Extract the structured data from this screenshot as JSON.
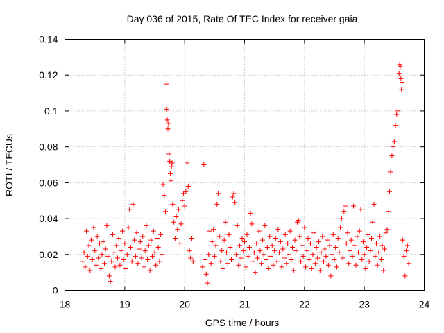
{
  "chart_data": {
    "type": "scatter",
    "title": "Day 036 of 2015, Rate Of TEC Index for receiver gaia",
    "xlabel": "GPS time / hours",
    "ylabel": "ROTI / TECUs",
    "xlim": [
      18,
      24
    ],
    "ylim": [
      0,
      0.14
    ],
    "xticks": [
      18,
      19,
      20,
      21,
      22,
      23,
      24
    ],
    "yticks": [
      0,
      0.02,
      0.04,
      0.06,
      0.08,
      0.1,
      0.12,
      0.14
    ],
    "xtick_labels": [
      "18",
      "19",
      "20",
      "21",
      "22",
      "23",
      "24"
    ],
    "ytick_labels": [
      "0",
      "0.02",
      "0.04",
      "0.06",
      "0.08",
      "0.1",
      "0.12",
      "0.14"
    ],
    "grid": true,
    "marker": "+",
    "color": "#ff0000",
    "series": [
      {
        "name": "ROTI",
        "points": [
          [
            18.3,
            0.016
          ],
          [
            18.32,
            0.021
          ],
          [
            18.34,
            0.013
          ],
          [
            18.36,
            0.033
          ],
          [
            18.38,
            0.019
          ],
          [
            18.4,
            0.025
          ],
          [
            18.42,
            0.011
          ],
          [
            18.44,
            0.028
          ],
          [
            18.46,
            0.017
          ],
          [
            18.48,
            0.035
          ],
          [
            18.5,
            0.022
          ],
          [
            18.52,
            0.014
          ],
          [
            18.54,
            0.03
          ],
          [
            18.56,
            0.018
          ],
          [
            18.58,
            0.026
          ],
          [
            18.6,
            0.012
          ],
          [
            18.62,
            0.02
          ],
          [
            18.64,
            0.027
          ],
          [
            18.66,
            0.015
          ],
          [
            18.68,
            0.023
          ],
          [
            18.7,
            0.036
          ],
          [
            18.72,
            0.019
          ],
          [
            18.74,
            0.008
          ],
          [
            18.76,
            0.005
          ],
          [
            18.78,
            0.016
          ],
          [
            18.8,
            0.031
          ],
          [
            18.82,
            0.021
          ],
          [
            18.84,
            0.013
          ],
          [
            18.86,
            0.025
          ],
          [
            18.88,
            0.018
          ],
          [
            18.9,
            0.029
          ],
          [
            18.92,
            0.014
          ],
          [
            18.94,
            0.022
          ],
          [
            18.96,
            0.033
          ],
          [
            18.98,
            0.017
          ],
          [
            19.0,
            0.026
          ],
          [
            19.02,
            0.012
          ],
          [
            19.04,
            0.02
          ],
          [
            19.06,
            0.035
          ],
          [
            19.08,
            0.045
          ],
          [
            19.1,
            0.024
          ],
          [
            19.12,
            0.016
          ],
          [
            19.14,
            0.048
          ],
          [
            19.16,
            0.028
          ],
          [
            19.18,
            0.019
          ],
          [
            19.2,
            0.032
          ],
          [
            19.22,
            0.015
          ],
          [
            19.24,
            0.023
          ],
          [
            19.26,
            0.027
          ],
          [
            19.28,
            0.018
          ],
          [
            19.3,
            0.03
          ],
          [
            19.32,
            0.013
          ],
          [
            19.34,
            0.022
          ],
          [
            19.36,
            0.036
          ],
          [
            19.38,
            0.017
          ],
          [
            19.4,
            0.025
          ],
          [
            19.42,
            0.011
          ],
          [
            19.44,
            0.028
          ],
          [
            19.46,
            0.019
          ],
          [
            19.48,
            0.033
          ],
          [
            19.5,
            0.021
          ],
          [
            19.52,
            0.014
          ],
          [
            19.54,
            0.029
          ],
          [
            19.56,
            0.024
          ],
          [
            19.58,
            0.016
          ],
          [
            19.6,
            0.031
          ],
          [
            19.62,
            0.02
          ],
          [
            19.64,
            0.059
          ],
          [
            19.66,
            0.053
          ],
          [
            19.68,
            0.044
          ],
          [
            19.69,
            0.115
          ],
          [
            19.7,
            0.101
          ],
          [
            19.71,
            0.095
          ],
          [
            19.72,
            0.09
          ],
          [
            19.73,
            0.093
          ],
          [
            19.74,
            0.076
          ],
          [
            19.75,
            0.072
          ],
          [
            19.76,
            0.065
          ],
          [
            19.77,
            0.061
          ],
          [
            19.78,
            0.069
          ],
          [
            19.79,
            0.071
          ],
          [
            19.8,
            0.048
          ],
          [
            19.82,
            0.038
          ],
          [
            19.84,
            0.029
          ],
          [
            19.86,
            0.041
          ],
          [
            19.88,
            0.034
          ],
          [
            19.9,
            0.045
          ],
          [
            19.92,
            0.026
          ],
          [
            19.94,
            0.037
          ],
          [
            19.96,
            0.05
          ],
          [
            19.98,
            0.054
          ],
          [
            20.0,
            0.047
          ],
          [
            20.02,
            0.055
          ],
          [
            20.04,
            0.071
          ],
          [
            20.06,
            0.058
          ],
          [
            20.08,
            0.022
          ],
          [
            20.1,
            0.018
          ],
          [
            20.12,
            0.029
          ],
          [
            20.14,
            0.016
          ],
          [
            20.3,
            0.013
          ],
          [
            20.32,
            0.07
          ],
          [
            20.34,
            0.017
          ],
          [
            20.36,
            0.009
          ],
          [
            20.38,
            0.004
          ],
          [
            20.4,
            0.02
          ],
          [
            20.42,
            0.033
          ],
          [
            20.44,
            0.015
          ],
          [
            20.46,
            0.027
          ],
          [
            20.48,
            0.034
          ],
          [
            20.5,
            0.019
          ],
          [
            20.52,
            0.025
          ],
          [
            20.54,
            0.048
          ],
          [
            20.56,
            0.054
          ],
          [
            20.58,
            0.03
          ],
          [
            20.6,
            0.016
          ],
          [
            20.62,
            0.022
          ],
          [
            20.64,
            0.012
          ],
          [
            20.66,
            0.028
          ],
          [
            20.68,
            0.038
          ],
          [
            20.7,
            0.021
          ],
          [
            20.72,
            0.015
          ],
          [
            20.74,
            0.031
          ],
          [
            20.76,
            0.024
          ],
          [
            20.78,
            0.017
          ],
          [
            20.8,
            0.052
          ],
          [
            20.82,
            0.054
          ],
          [
            20.84,
            0.049
          ],
          [
            20.86,
            0.02
          ],
          [
            20.88,
            0.036
          ],
          [
            20.9,
            0.014
          ],
          [
            20.92,
            0.025
          ],
          [
            20.94,
            0.018
          ],
          [
            20.96,
            0.029
          ],
          [
            20.98,
            0.022
          ],
          [
            21.0,
            0.027
          ],
          [
            21.02,
            0.013
          ],
          [
            21.04,
            0.031
          ],
          [
            21.06,
            0.019
          ],
          [
            21.08,
            0.024
          ],
          [
            21.1,
            0.043
          ],
          [
            21.12,
            0.037
          ],
          [
            21.14,
            0.016
          ],
          [
            21.16,
            0.021
          ],
          [
            21.18,
            0.01
          ],
          [
            21.2,
            0.026
          ],
          [
            21.22,
            0.018
          ],
          [
            21.24,
            0.033
          ],
          [
            21.26,
            0.022
          ],
          [
            21.28,
            0.015
          ],
          [
            21.3,
            0.028
          ],
          [
            21.32,
            0.02
          ],
          [
            21.34,
            0.036
          ],
          [
            21.36,
            0.017
          ],
          [
            21.38,
            0.024
          ],
          [
            21.4,
            0.012
          ],
          [
            21.42,
            0.03
          ],
          [
            21.44,
            0.019
          ],
          [
            21.46,
            0.025
          ],
          [
            21.48,
            0.014
          ],
          [
            21.5,
            0.022
          ],
          [
            21.52,
            0.029
          ],
          [
            21.54,
            0.016
          ],
          [
            21.56,
            0.034
          ],
          [
            21.58,
            0.021
          ],
          [
            21.6,
            0.027
          ],
          [
            21.62,
            0.013
          ],
          [
            21.64,
            0.023
          ],
          [
            21.66,
            0.018
          ],
          [
            21.68,
            0.031
          ],
          [
            21.7,
            0.015
          ],
          [
            21.72,
            0.026
          ],
          [
            21.74,
            0.02
          ],
          [
            21.76,
            0.033
          ],
          [
            21.78,
            0.017
          ],
          [
            21.8,
            0.024
          ],
          [
            21.82,
            0.011
          ],
          [
            21.84,
            0.028
          ],
          [
            21.86,
            0.022
          ],
          [
            21.88,
            0.038
          ],
          [
            21.9,
            0.039
          ],
          [
            21.92,
            0.03
          ],
          [
            21.94,
            0.016
          ],
          [
            21.96,
            0.025
          ],
          [
            21.98,
            0.019
          ],
          [
            22.0,
            0.035
          ],
          [
            22.02,
            0.013
          ],
          [
            22.04,
            0.022
          ],
          [
            22.06,
            0.029
          ],
          [
            22.08,
            0.017
          ],
          [
            22.1,
            0.026
          ],
          [
            22.12,
            0.012
          ],
          [
            22.14,
            0.02
          ],
          [
            22.16,
            0.032
          ],
          [
            22.18,
            0.015
          ],
          [
            22.2,
            0.024
          ],
          [
            22.22,
            0.018
          ],
          [
            22.24,
            0.027
          ],
          [
            22.26,
            0.011
          ],
          [
            22.28,
            0.021
          ],
          [
            22.3,
            0.03
          ],
          [
            22.32,
            0.016
          ],
          [
            22.34,
            0.023
          ],
          [
            22.36,
            0.019
          ],
          [
            22.38,
            0.028
          ],
          [
            22.4,
            0.014
          ],
          [
            22.42,
            0.025
          ],
          [
            22.44,
            0.008
          ],
          [
            22.46,
            0.02
          ],
          [
            22.48,
            0.031
          ],
          [
            22.5,
            0.017
          ],
          [
            22.52,
            0.024
          ],
          [
            22.54,
            0.013
          ],
          [
            22.56,
            0.029
          ],
          [
            22.58,
            0.021
          ],
          [
            22.6,
            0.035
          ],
          [
            22.62,
            0.04
          ],
          [
            22.64,
            0.018
          ],
          [
            22.66,
            0.044
          ],
          [
            22.68,
            0.047
          ],
          [
            22.7,
            0.026
          ],
          [
            22.72,
            0.032
          ],
          [
            22.74,
            0.015
          ],
          [
            22.76,
            0.022
          ],
          [
            22.78,
            0.028
          ],
          [
            22.8,
            0.019
          ],
          [
            22.82,
            0.047
          ],
          [
            22.84,
            0.025
          ],
          [
            22.86,
            0.014
          ],
          [
            22.88,
            0.03
          ],
          [
            22.9,
            0.021
          ],
          [
            22.92,
            0.033
          ],
          [
            22.94,
            0.045
          ],
          [
            22.96,
            0.017
          ],
          [
            22.98,
            0.027
          ],
          [
            23.0,
            0.02
          ],
          [
            23.02,
            0.012
          ],
          [
            23.04,
            0.024
          ],
          [
            23.06,
            0.031
          ],
          [
            23.08,
            0.016
          ],
          [
            23.1,
            0.022
          ],
          [
            23.12,
            0.029
          ],
          [
            23.14,
            0.038
          ],
          [
            23.16,
            0.048
          ],
          [
            23.18,
            0.019
          ],
          [
            23.2,
            0.026
          ],
          [
            23.22,
            0.014
          ],
          [
            23.24,
            0.021
          ],
          [
            23.26,
            0.03
          ],
          [
            23.28,
            0.017
          ],
          [
            23.3,
            0.025
          ],
          [
            23.32,
            0.011
          ],
          [
            23.34,
            0.023
          ],
          [
            23.36,
            0.032
          ],
          [
            23.38,
            0.034
          ],
          [
            23.4,
            0.044
          ],
          [
            23.42,
            0.055
          ],
          [
            23.44,
            0.066
          ],
          [
            23.46,
            0.075
          ],
          [
            23.48,
            0.08
          ],
          [
            23.5,
            0.083
          ],
          [
            23.52,
            0.092
          ],
          [
            23.54,
            0.098
          ],
          [
            23.56,
            0.1
          ],
          [
            23.58,
            0.121
          ],
          [
            23.59,
            0.126
          ],
          [
            23.6,
            0.125
          ],
          [
            23.61,
            0.118
          ],
          [
            23.62,
            0.112
          ],
          [
            23.63,
            0.116
          ],
          [
            23.64,
            0.028
          ],
          [
            23.66,
            0.019
          ],
          [
            23.68,
            0.008
          ],
          [
            23.7,
            0.022
          ],
          [
            23.72,
            0.025
          ],
          [
            23.74,
            0.015
          ]
        ]
      }
    ]
  }
}
